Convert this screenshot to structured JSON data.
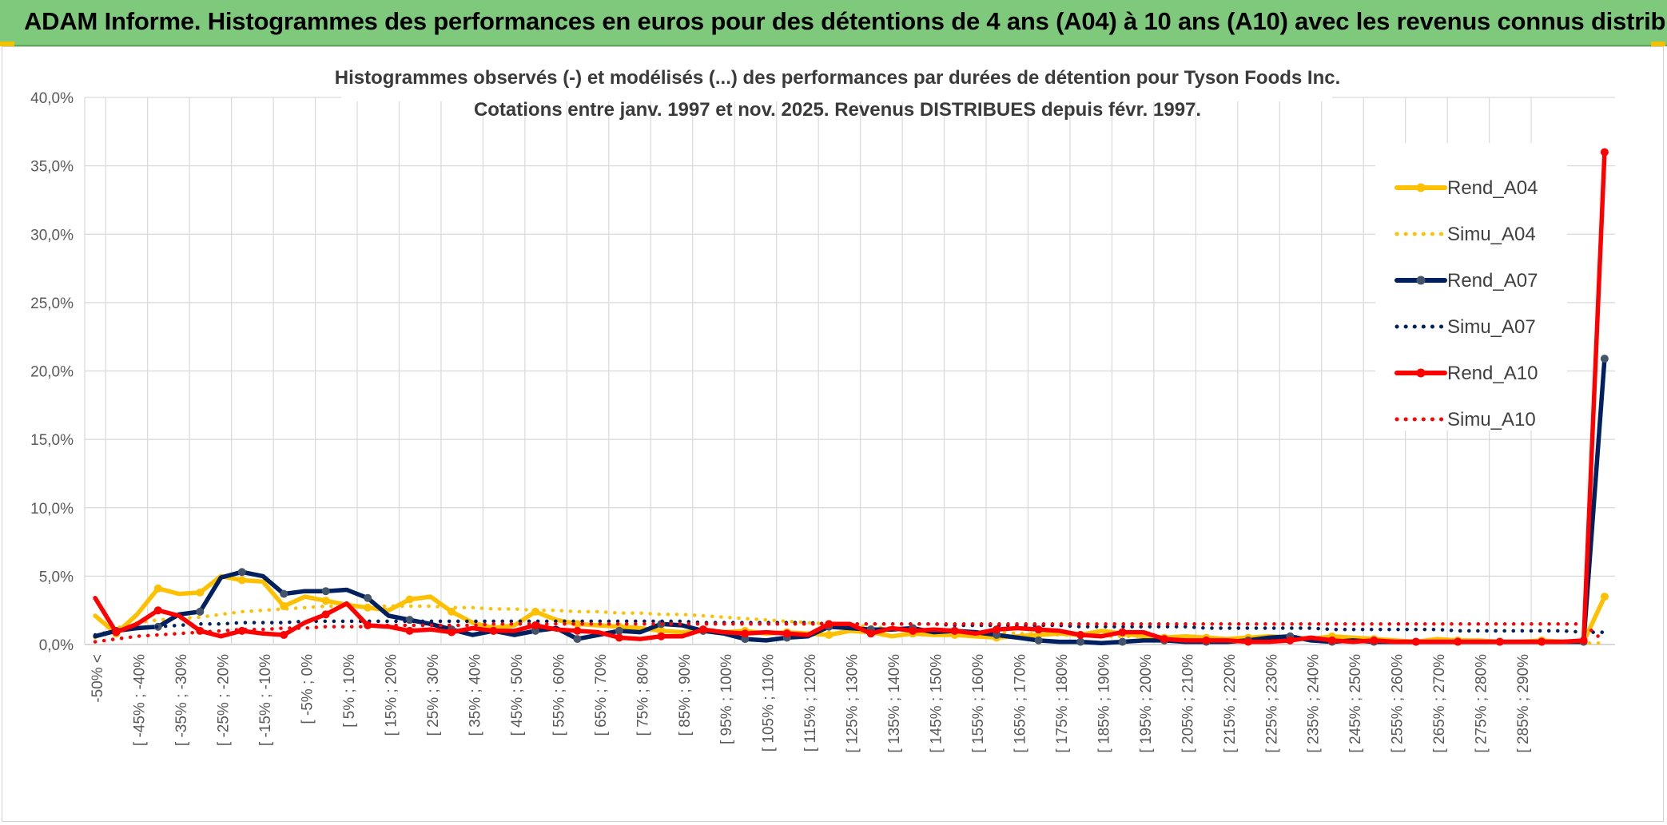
{
  "header": {
    "title": "ADAM Informe. Histogrammes des performances en euros pour des détentions de 4 ans (A04) à 10 ans (A10) avec les revenus connus distribués"
  },
  "chart_data": {
    "type": "line",
    "title": "Histogrammes observés (-) et modélisés (...) des performances par durées de détention pour Tyson Foods Inc.",
    "subtitle": "Cotations entre janv. 1997 et nov. 2025. Revenus DISTRIBUES depuis févr. 1997.",
    "xlabel": "",
    "ylabel": "",
    "ylim": [
      0,
      40
    ],
    "y_ticks": [
      "0,0%",
      "5,0%",
      "10,0%",
      "15,0%",
      "20,0%",
      "25,0%",
      "30,0%",
      "35,0%",
      "40,0%"
    ],
    "grid": true,
    "legend_position": "right",
    "x_tick_labels": [
      "-50% <",
      "[ -45% ; -40%",
      "[ -35% ; -30%",
      "[ -25% ; -20%",
      "[ -15% ; -10%",
      "[ -5% ; 0%",
      "[ 5% ; 10%",
      "[ 15% ; 20%",
      "[ 25% ; 30%",
      "[ 35% ; 40%",
      "[ 45% ; 50%",
      "[ 55% ; 60%",
      "[ 65% ; 70%",
      "[ 75% ; 80%",
      "[ 85% ; 90%",
      "[ 95% ; 100%",
      "[ 105% ; 110%",
      "[ 115% ; 120%",
      "[ 125% ; 130%",
      "[ 135% ; 140%",
      "[ 145% ; 150%",
      "[ 155% ; 160%",
      "[ 165% ; 170%",
      "[ 175% ; 180%",
      "[ 185% ; 190%",
      "[ 195% ; 200%",
      "[ 205% ; 210%",
      "[ 215% ; 220%",
      "[ 225% ; 230%",
      "[ 235% ; 240%",
      "[ 245% ; 250%",
      "[ 255% ; 260%",
      "[ 265% ; 270%",
      "[ 275% ; 280%",
      "[ 285% ; 290%"
    ],
    "series": [
      {
        "name": "Rend_A04",
        "color": "#ffc000",
        "style": "solid",
        "markers": true,
        "values": [
          2.1,
          0.8,
          2.2,
          4.1,
          3.7,
          3.8,
          5.0,
          4.7,
          4.6,
          2.8,
          3.5,
          3.2,
          2.9,
          2.7,
          2.5,
          3.3,
          3.5,
          2.4,
          1.6,
          1.2,
          1.4,
          2.4,
          1.8,
          1.5,
          1.4,
          1.3,
          1.2,
          1.0,
          0.9,
          1.0,
          0.9,
          1.0,
          0.8,
          0.9,
          0.8,
          0.7,
          1.0,
          0.9,
          0.6,
          0.8,
          0.7,
          0.7,
          0.6,
          0.5,
          0.6,
          0.7,
          0.8,
          0.7,
          1.0,
          0.8,
          0.6,
          0.5,
          0.6,
          0.5,
          0.4,
          0.5,
          0.6,
          0.5,
          0.4,
          0.6,
          0.5,
          0.4,
          0.3,
          0.2,
          0.4,
          0.3,
          0.3,
          0.2,
          0.2,
          0.3,
          0.2,
          0.2,
          3.5
        ]
      },
      {
        "name": "Simu_A04",
        "color": "#ffc000",
        "style": "dotted",
        "markers": false,
        "values": [
          0.5,
          1.2,
          1.6,
          1.8,
          1.9,
          2.0,
          2.2,
          2.4,
          2.5,
          2.6,
          2.7,
          2.8,
          2.8,
          2.8,
          2.8,
          2.8,
          2.8,
          2.7,
          2.7,
          2.6,
          2.6,
          2.5,
          2.5,
          2.4,
          2.4,
          2.3,
          2.3,
          2.2,
          2.2,
          2.1,
          2.0,
          1.9,
          1.8,
          1.7,
          1.6,
          1.5,
          1.4,
          1.3,
          1.2,
          1.1,
          1.0,
          1.0,
          0.9,
          0.9,
          0.8,
          0.8,
          0.7,
          0.7,
          0.6,
          0.6,
          0.6,
          0.5,
          0.5,
          0.5,
          0.4,
          0.4,
          0.4,
          0.4,
          0.3,
          0.3,
          0.3,
          0.3,
          0.3,
          0.2,
          0.2,
          0.2,
          0.2,
          0.2,
          0.2,
          0.2,
          0.2,
          0.1,
          0.1
        ]
      },
      {
        "name": "Rend_A07",
        "color": "#002060",
        "style": "solid",
        "markers": true,
        "values": [
          0.6,
          1.0,
          1.2,
          1.3,
          2.2,
          2.4,
          4.9,
          5.3,
          5.0,
          3.7,
          3.9,
          3.9,
          4.0,
          3.4,
          2.1,
          1.8,
          1.5,
          1.1,
          0.7,
          1.0,
          0.7,
          1.0,
          1.2,
          0.4,
          0.7,
          1.0,
          0.9,
          1.5,
          1.4,
          1.0,
          0.8,
          0.4,
          0.3,
          0.5,
          0.6,
          1.3,
          1.2,
          1.1,
          1.1,
          1.2,
          0.9,
          1.0,
          0.9,
          0.7,
          0.5,
          0.3,
          0.2,
          0.2,
          0.1,
          0.2,
          0.3,
          0.3,
          0.2,
          0.2,
          0.2,
          0.3,
          0.5,
          0.6,
          0.3,
          0.2,
          0.3,
          0.2,
          0.2,
          0.2,
          0.2,
          0.2,
          0.2,
          0.2,
          0.2,
          0.2,
          0.2,
          0.2,
          20.9
        ]
      },
      {
        "name": "Simu_A07",
        "color": "#002060",
        "style": "dotted",
        "markers": false,
        "values": [
          0.7,
          1.0,
          1.2,
          1.3,
          1.4,
          1.5,
          1.5,
          1.6,
          1.6,
          1.6,
          1.7,
          1.7,
          1.7,
          1.7,
          1.7,
          1.7,
          1.7,
          1.7,
          1.7,
          1.7,
          1.7,
          1.7,
          1.7,
          1.7,
          1.7,
          1.7,
          1.7,
          1.7,
          1.7,
          1.6,
          1.6,
          1.6,
          1.6,
          1.6,
          1.6,
          1.5,
          1.5,
          1.5,
          1.5,
          1.5,
          1.5,
          1.4,
          1.4,
          1.4,
          1.4,
          1.4,
          1.4,
          1.3,
          1.3,
          1.3,
          1.3,
          1.3,
          1.3,
          1.2,
          1.2,
          1.2,
          1.2,
          1.2,
          1.2,
          1.1,
          1.1,
          1.1,
          1.1,
          1.1,
          1.1,
          1.0,
          1.0,
          1.0,
          1.0,
          1.0,
          1.0,
          0.9,
          0.9
        ]
      },
      {
        "name": "Rend_A10",
        "color": "#ff0000",
        "style": "solid",
        "markers": true,
        "values": [
          3.4,
          0.9,
          1.5,
          2.5,
          2.1,
          1.0,
          0.6,
          1.0,
          0.8,
          0.7,
          1.6,
          2.2,
          3.0,
          1.4,
          1.3,
          1.0,
          1.1,
          0.9,
          1.2,
          1.0,
          1.0,
          1.4,
          1.1,
          1.0,
          0.9,
          0.5,
          0.4,
          0.6,
          0.6,
          1.1,
          0.9,
          0.8,
          0.9,
          0.8,
          0.7,
          1.5,
          1.5,
          0.8,
          1.2,
          1.0,
          1.1,
          1.0,
          0.8,
          1.1,
          1.2,
          1.1,
          1.0,
          0.7,
          0.6,
          0.9,
          0.9,
          0.4,
          0.3,
          0.3,
          0.3,
          0.2,
          0.2,
          0.3,
          0.5,
          0.3,
          0.2,
          0.3,
          0.2,
          0.2,
          0.2,
          0.2,
          0.2,
          0.2,
          0.2,
          0.2,
          0.2,
          0.3,
          36.0
        ]
      },
      {
        "name": "Simu_A10",
        "color": "#ff0000",
        "style": "dotted",
        "markers": false,
        "values": [
          0.2,
          0.4,
          0.6,
          0.7,
          0.8,
          0.9,
          1.0,
          1.1,
          1.1,
          1.2,
          1.2,
          1.3,
          1.3,
          1.3,
          1.4,
          1.4,
          1.4,
          1.4,
          1.4,
          1.5,
          1.5,
          1.5,
          1.5,
          1.5,
          1.5,
          1.5,
          1.5,
          1.5,
          1.5,
          1.5,
          1.5,
          1.5,
          1.5,
          1.5,
          1.5,
          1.5,
          1.5,
          1.5,
          1.5,
          1.5,
          1.5,
          1.5,
          1.5,
          1.5,
          1.5,
          1.5,
          1.5,
          1.5,
          1.5,
          1.5,
          1.5,
          1.5,
          1.5,
          1.5,
          1.5,
          1.5,
          1.5,
          1.5,
          1.5,
          1.5,
          1.5,
          1.5,
          1.5,
          1.5,
          1.5,
          1.5,
          1.5,
          1.5,
          1.5,
          1.5,
          1.5,
          1.5,
          0.2
        ]
      }
    ]
  }
}
